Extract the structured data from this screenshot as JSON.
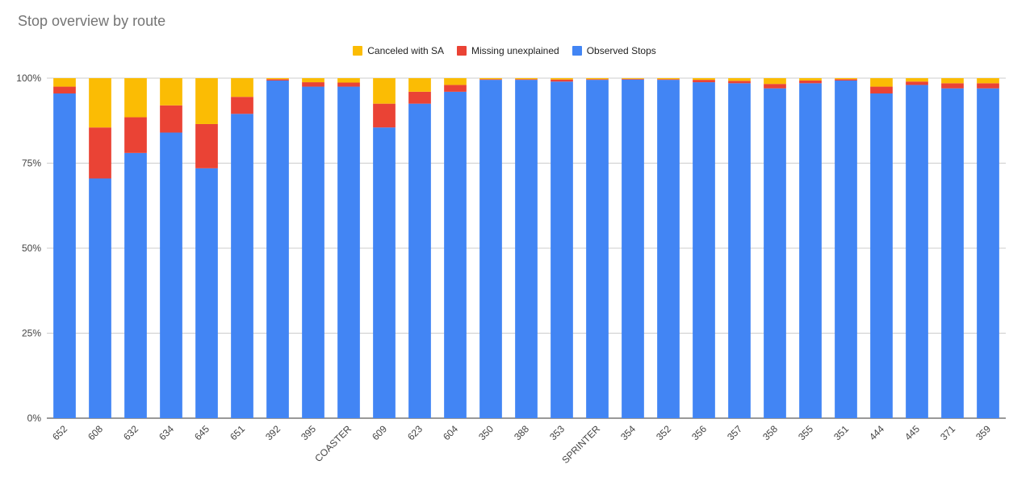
{
  "chart_data": {
    "type": "bar",
    "stacked": true,
    "percent": true,
    "title": "Stop overview by route",
    "xlabel": "",
    "ylabel": "",
    "ylim": [
      0,
      100
    ],
    "y_ticks": [
      "0%",
      "25%",
      "50%",
      "75%",
      "100%"
    ],
    "legend_position": "top",
    "grid": true,
    "categories": [
      "652",
      "608",
      "632",
      "634",
      "645",
      "651",
      "392",
      "395",
      "COASTER",
      "609",
      "623",
      "604",
      "350",
      "388",
      "353",
      "SPRINTER",
      "354",
      "352",
      "356",
      "357",
      "358",
      "355",
      "351",
      "444",
      "445",
      "371",
      "359"
    ],
    "series": [
      {
        "name": "Observed Stops",
        "color": "#4285F4",
        "values": [
          95.5,
          70.5,
          78,
          84,
          73.5,
          89.5,
          99.3,
          97.5,
          97.5,
          85.5,
          92.5,
          96,
          99.5,
          99.5,
          99,
          99.5,
          99.6,
          99.5,
          98.8,
          98.5,
          97,
          98.5,
          99.3,
          95.5,
          98,
          97,
          97
        ]
      },
      {
        "name": "Missing unexplained",
        "color": "#EA4335",
        "values": [
          2,
          15,
          10.5,
          8,
          13,
          5,
          0.4,
          1.3,
          1.2,
          7,
          3.5,
          2,
          0.2,
          0.2,
          0.6,
          0.2,
          0.2,
          0.2,
          0.7,
          0.7,
          1.3,
          0.8,
          0.4,
          2,
          1,
          1.5,
          1.5
        ]
      },
      {
        "name": "Canceled with SA",
        "color": "#FBBC04",
        "values": [
          2.5,
          14.5,
          11.5,
          8,
          13.5,
          5.5,
          0.3,
          1.2,
          1.3,
          7.5,
          4,
          2,
          0.3,
          0.3,
          0.4,
          0.3,
          0.2,
          0.3,
          0.5,
          0.8,
          1.7,
          0.7,
          0.3,
          2.5,
          1,
          1.5,
          1.5
        ]
      }
    ]
  },
  "legend": [
    {
      "label": "Canceled with SA",
      "color": "#FBBC04"
    },
    {
      "label": "Missing unexplained",
      "color": "#EA4335"
    },
    {
      "label": "Observed Stops",
      "color": "#4285F4"
    }
  ]
}
